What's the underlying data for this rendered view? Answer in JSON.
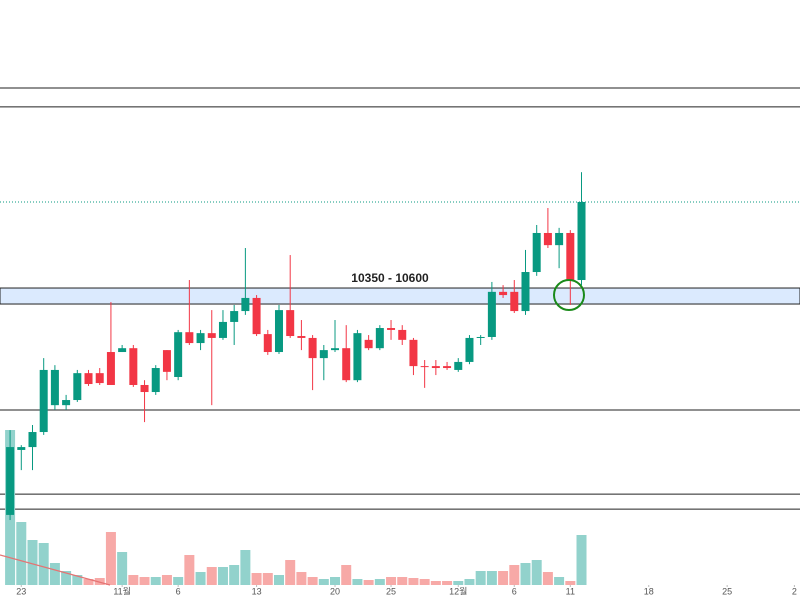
{
  "chart_data": {
    "type": "candlestick",
    "annotation": "10350 - 10600",
    "zone": [
      10350,
      10600
    ],
    "levels": [
      13725,
      13430,
      8695,
      7380,
      7145
    ],
    "dotted_level": 11944,
    "ylim": [
      5960,
      15100
    ],
    "xlim": [
      -0.9,
      70.5
    ],
    "xticks": [
      {
        "value": 1,
        "label": "23"
      },
      {
        "value": 10,
        "label": "11월"
      },
      {
        "value": 15,
        "label": "6"
      },
      {
        "value": 22,
        "label": "13"
      },
      {
        "value": 29,
        "label": "20"
      },
      {
        "value": 34,
        "label": "25"
      },
      {
        "value": 40,
        "label": "12월"
      },
      {
        "value": 45,
        "label": "6"
      },
      {
        "value": 50,
        "label": "11"
      },
      {
        "value": 57,
        "label": "18"
      },
      {
        "value": 64,
        "label": "25"
      },
      {
        "value": 70,
        "label": "2"
      }
    ],
    "open": [
      7055,
      8070,
      8115,
      8350,
      8770,
      8770,
      8850,
      9270,
      9270,
      9600,
      9600,
      9660,
      9085,
      8975,
      9630,
      9210,
      9910,
      9740,
      9895,
      9820,
      10070,
      10240,
      10445,
      9880,
      9600,
      10255,
      9850,
      9820,
      9505,
      9630,
      9660,
      9160,
      9790,
      9660,
      9975,
      9945,
      9790,
      9380,
      9380,
      9380,
      9320,
      9445,
      9820,
      9835,
      10540,
      10540,
      10240,
      10850,
      11460,
      11270,
      11460,
      10725
    ],
    "high": [
      8380,
      8145,
      8460,
      9505,
      9395,
      8930,
      9320,
      9320,
      9350,
      10380,
      9710,
      9710,
      9160,
      9395,
      9630,
      9945,
      10725,
      9945,
      10255,
      10255,
      10335,
      11225,
      10490,
      9945,
      10335,
      11115,
      10100,
      9865,
      9710,
      10100,
      10020,
      9945,
      9865,
      10020,
      10100,
      10020,
      9820,
      9475,
      9475,
      9445,
      9505,
      9865,
      9865,
      10695,
      10645,
      10725,
      11195,
      11585,
      11850,
      11540,
      11505,
      12410
    ],
    "low": [
      6975,
      7755,
      7755,
      8305,
      8695,
      8695,
      8820,
      9070,
      9085,
      9085,
      9600,
      9055,
      8505,
      8930,
      9160,
      9160,
      9710,
      9630,
      8770,
      9790,
      9710,
      10180,
      9850,
      9555,
      9570,
      9820,
      9630,
      9005,
      9160,
      9600,
      9130,
      9130,
      9630,
      9630,
      9790,
      9710,
      9240,
      9040,
      9240,
      9320,
      9290,
      9410,
      9710,
      9790,
      10445,
      10210,
      10180,
      10790,
      11225,
      10910,
      10335,
      10645
    ],
    "close": [
      8115,
      8115,
      8350,
      9320,
      9320,
      8850,
      9270,
      9100,
      9115,
      9085,
      9660,
      9085,
      8975,
      9350,
      9290,
      9910,
      9740,
      9895,
      9820,
      10070,
      10240,
      10445,
      9880,
      9600,
      10255,
      9850,
      9820,
      9505,
      9630,
      9660,
      9160,
      9895,
      9660,
      9975,
      9945,
      9790,
      9380,
      9365,
      9350,
      9350,
      9445,
      9820,
      9835,
      10540,
      10490,
      10240,
      10850,
      11460,
      11270,
      11460,
      10725,
      11944
    ],
    "volume": [
      155,
      63,
      45,
      42,
      22,
      14,
      10,
      6,
      7,
      53,
      33,
      10,
      8,
      8,
      10,
      8,
      30,
      13,
      18,
      18,
      20,
      35,
      12,
      12,
      10,
      25,
      13,
      8,
      6,
      8,
      20,
      6,
      5,
      6,
      8,
      8,
      7,
      6,
      4,
      4,
      4,
      6,
      14,
      14,
      14,
      20,
      22,
      25,
      13,
      8,
      4,
      50
    ],
    "volume_lim": [
      0,
      200
    ],
    "up_color": "#089981",
    "down_color": "#f23645",
    "up_volume_color": "#92d2cc",
    "down_volume_color": "#f7a9a7",
    "zone_color": "#dbeafe",
    "dotted_color": "#089981"
  }
}
